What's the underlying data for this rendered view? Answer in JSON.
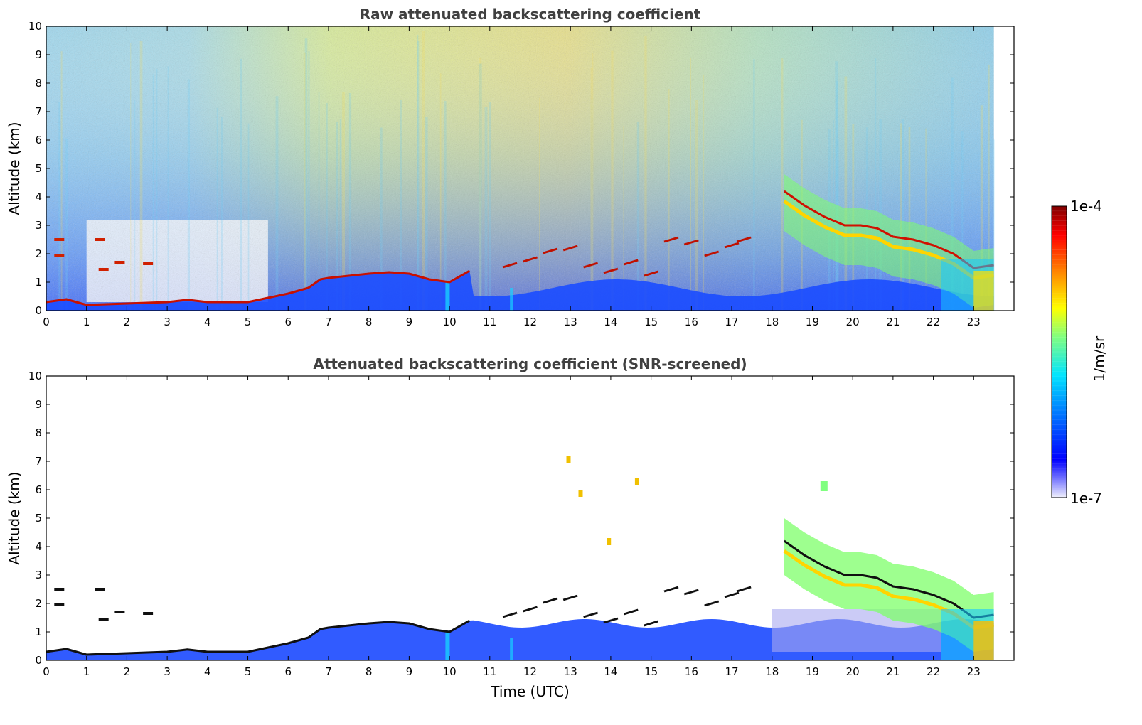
{
  "chart_data": [
    {
      "type": "heatmap",
      "title": "Raw attenuated backscattering coefficient",
      "xlabel": "",
      "ylabel": "Altitude (km)",
      "xlim": [
        0,
        24
      ],
      "ylim": [
        0,
        10
      ],
      "xticks": [
        "0",
        "1",
        "2",
        "3",
        "4",
        "5",
        "6",
        "7",
        "8",
        "9",
        "10",
        "11",
        "12",
        "13",
        "14",
        "15",
        "16",
        "17",
        "18",
        "19",
        "20",
        "21",
        "22",
        "23"
      ],
      "yticks": [
        "0",
        "1",
        "2",
        "3",
        "4",
        "5",
        "6",
        "7",
        "8",
        "9",
        "10"
      ],
      "data_end_time": 23.5,
      "boundary_layer_top_km": [
        [
          0,
          0.3
        ],
        [
          0.5,
          0.4
        ],
        [
          1,
          0.2
        ],
        [
          2,
          0.25
        ],
        [
          3,
          0.3
        ],
        [
          3.5,
          0.38
        ],
        [
          4,
          0.3
        ],
        [
          5,
          0.3
        ],
        [
          5.5,
          0.45
        ],
        [
          6,
          0.6
        ],
        [
          6.5,
          0.8
        ],
        [
          6.8,
          1.1
        ],
        [
          7,
          1.15
        ],
        [
          8,
          1.3
        ],
        [
          8.5,
          1.35
        ],
        [
          9,
          1.3
        ],
        [
          9.5,
          1.1
        ],
        [
          10,
          1.0
        ],
        [
          10.5,
          1.4
        ]
      ],
      "cloud_layer_km": [
        [
          11.5,
          1.6
        ],
        [
          12,
          1.8
        ],
        [
          12.5,
          2.1
        ],
        [
          13,
          2.2
        ],
        [
          13.5,
          1.6
        ],
        [
          14,
          1.4
        ],
        [
          14.5,
          1.7
        ],
        [
          15,
          1.3
        ],
        [
          15.5,
          2.5
        ],
        [
          16,
          2.4
        ],
        [
          16.5,
          2.0
        ],
        [
          17,
          2.3
        ],
        [
          17.3,
          2.5
        ]
      ],
      "descending_cloud_top_km": [
        [
          18.3,
          4.2
        ],
        [
          18.8,
          3.7
        ],
        [
          19.3,
          3.3
        ],
        [
          19.8,
          3.0
        ],
        [
          20.2,
          3.0
        ],
        [
          20.6,
          2.9
        ],
        [
          21,
          2.6
        ],
        [
          21.5,
          2.5
        ],
        [
          22,
          2.3
        ],
        [
          22.5,
          2.0
        ],
        [
          23,
          1.5
        ],
        [
          23.5,
          1.6
        ]
      ],
      "colorbar": {
        "label": "1/m/sr",
        "min_label": "1e-7",
        "max_label": "1e-4",
        "colormap": "jet"
      }
    },
    {
      "type": "heatmap",
      "title": "Attenuated backscattering coefficient (SNR-screened)",
      "xlabel": "Time (UTC)",
      "ylabel": "Altitude (km)",
      "xlim": [
        0,
        24
      ],
      "ylim": [
        0,
        10
      ],
      "xticks": [
        "0",
        "1",
        "2",
        "3",
        "4",
        "5",
        "6",
        "7",
        "8",
        "9",
        "10",
        "11",
        "12",
        "13",
        "14",
        "15",
        "16",
        "17",
        "18",
        "19",
        "20",
        "21",
        "22",
        "23"
      ],
      "yticks": [
        "0",
        "1",
        "2",
        "3",
        "4",
        "5",
        "6",
        "7",
        "8",
        "9",
        "10"
      ],
      "data_end_time": 23.5,
      "screened": true
    }
  ],
  "colors": {
    "jet_stops": [
      "#ececfa",
      "#0000ff",
      "#0080ff",
      "#00ffff",
      "#80ff80",
      "#ffff00",
      "#ff8000",
      "#ff0000",
      "#800000"
    ],
    "title": "#404040",
    "axis": "#000000"
  }
}
